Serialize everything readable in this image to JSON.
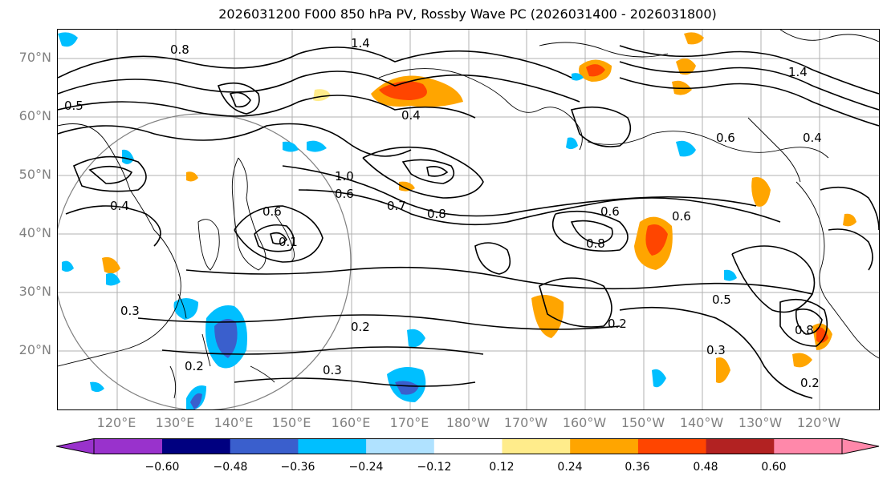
{
  "title": "2026031200 F000 850 hPa PV, Rossby Wave PC (2026031400 - 2026031800)",
  "map": {
    "lat_labels": [
      "70°N",
      "60°N",
      "50°N",
      "40°N",
      "30°N",
      "20°N"
    ],
    "lat_values": [
      70,
      60,
      50,
      40,
      30,
      20
    ],
    "lon_labels": [
      "120°E",
      "130°E",
      "140°E",
      "150°E",
      "160°E",
      "170°E",
      "180°W",
      "170°W",
      "160°W",
      "150°W",
      "140°W",
      "130°W",
      "120°W"
    ],
    "contour_labels": [
      "1.4",
      "0.5",
      "0.8",
      "0.4",
      "1.0",
      "0.6",
      "0.7",
      "0.8",
      "0.6",
      "0.4",
      "0.1",
      "0.3",
      "0.2",
      "0.3",
      "0.2",
      "0.6",
      "0.8",
      "0.6",
      "0.2",
      "0.5",
      "0.3",
      "1.4",
      "0.4",
      "0.8",
      "0.6",
      "0.2"
    ],
    "colors": {
      "land_outline": "#000000",
      "grid": "#b0b0b0",
      "circle": "#808080"
    }
  },
  "colorbar": {
    "ticks": [
      "−0.60",
      "−0.48",
      "−0.36",
      "−0.24",
      "−0.12",
      "0.12",
      "0.24",
      "0.36",
      "0.48",
      "0.60"
    ],
    "colors": [
      "#9932cc",
      "#000080",
      "#3a5fcd",
      "#00bfff",
      "#b0e2ff",
      "#ffffff",
      "#ffec8b",
      "#ffa500",
      "#ff4500",
      "#b22222",
      "#ff88aa"
    ]
  }
}
